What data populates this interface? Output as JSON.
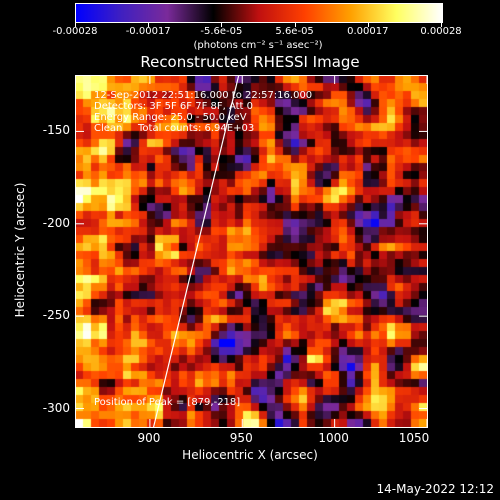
{
  "colorbar": {
    "labels": [
      "-0.00028",
      "-0.00017",
      "-5.6e-05",
      "5.6e-05",
      "0.00017",
      "0.00028"
    ],
    "units": "(photons cm⁻² s⁻¹ asec⁻²)",
    "range": [
      -0.00028,
      0.00028
    ],
    "colors": [
      "#0000ff",
      "#4020c0",
      "#7a2a9a",
      "#000000",
      "#c01010",
      "#ff4000",
      "#ffa000",
      "#ffff60",
      "#ffffff"
    ]
  },
  "title": "Reconstructed RHESSI Image",
  "annotations": {
    "time_range": "12-Sep-2012 22:51:16.000 to 22:57:16.000",
    "detectors": "Detectors: 3F 5F 6F 7F 8F, Att 0",
    "energy_range": "Energy Range: 25.0 - 50.0 keV",
    "algorithm": "Clean",
    "total_counts": "Total counts: 6.94E+03",
    "peak": "Position of Peak = [879,-218]"
  },
  "axes": {
    "xlabel": "Heliocentric X (arcsec)",
    "ylabel": "Heliocentric Y (arcsec)",
    "xlim": [
      860,
      1050
    ],
    "ylim": [
      -310,
      -120
    ],
    "xticks": [
      {
        "value": 900,
        "label": "900"
      },
      {
        "value": 950,
        "label": "950"
      },
      {
        "value": 1000,
        "label": "1000"
      },
      {
        "value": 1050,
        "label": "1050"
      }
    ],
    "yticks": [
      {
        "value": -150,
        "label": "-150"
      },
      {
        "value": -200,
        "label": "-200"
      },
      {
        "value": -250,
        "label": "-250"
      },
      {
        "value": -300,
        "label": "-300"
      }
    ]
  },
  "limb_line": {
    "x_bottom": 902,
    "x_top": 948
  },
  "peak_position": {
    "x": 879,
    "y": -218
  },
  "timestamp": "14-May-2022 12:12"
}
